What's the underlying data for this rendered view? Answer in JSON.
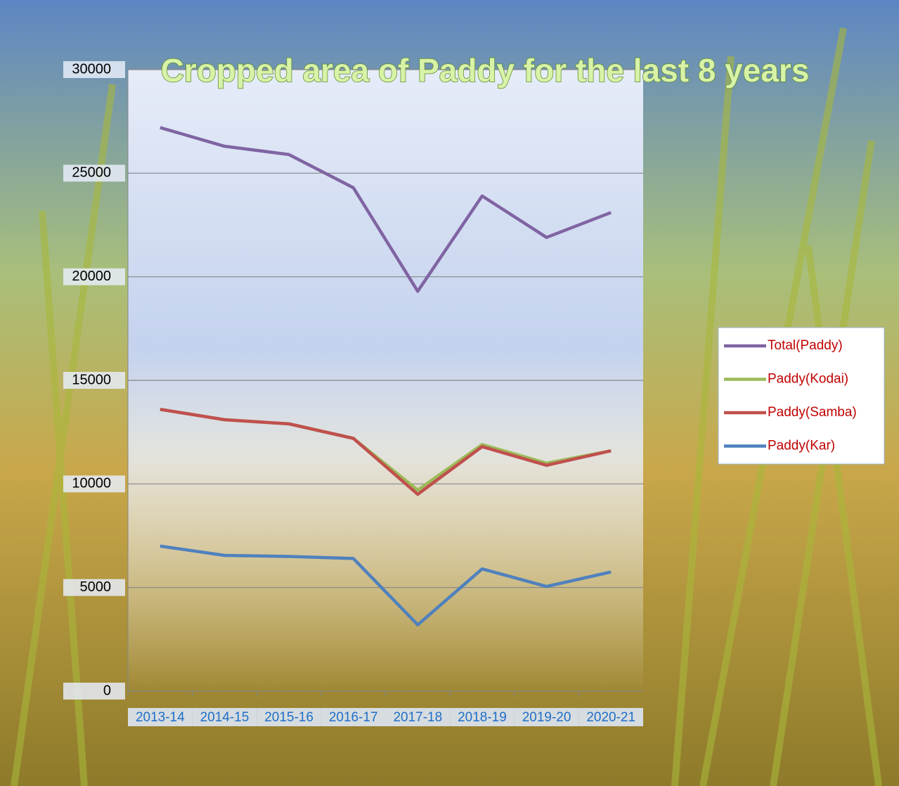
{
  "chart_data": {
    "type": "line",
    "title": "Cropped area of Paddy for the last 8 years",
    "categories": [
      "2013-14",
      "2014-15",
      "2015-16",
      "2016-17",
      "2017-18",
      "2018-19",
      "2019-20",
      "2020-21"
    ],
    "series": [
      {
        "name": "Total(Paddy)",
        "color": "#8064a2",
        "values": [
          27200,
          26300,
          25900,
          24300,
          19300,
          23900,
          21900,
          23100
        ]
      },
      {
        "name": "Paddy(Kodai)",
        "color": "#9bbb59",
        "values": [
          13600,
          13100,
          12900,
          12200,
          9700,
          11900,
          11000,
          11600
        ]
      },
      {
        "name": "Paddy(Samba)",
        "color": "#c0504d",
        "values": [
          13600,
          13100,
          12900,
          12200,
          9500,
          11800,
          10900,
          11600
        ]
      },
      {
        "name": "Paddy(Kar)",
        "color": "#4f81bd",
        "values": [
          7000,
          6550,
          6500,
          6400,
          3200,
          5900,
          5050,
          5750
        ]
      }
    ],
    "ylim": [
      0,
      30000
    ],
    "yticks": [
      0,
      5000,
      10000,
      15000,
      20000,
      25000,
      30000
    ],
    "grid": true,
    "legend": "right"
  }
}
